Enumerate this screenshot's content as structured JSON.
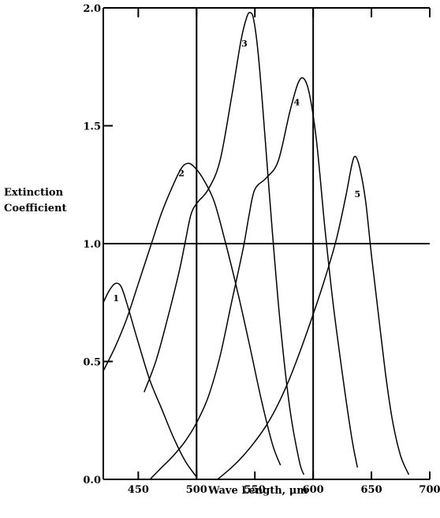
{
  "chart_data": {
    "type": "line",
    "title": "",
    "xlabel": "Wave Length, μm",
    "ylabel": [
      "Extinction",
      "Coefficient"
    ],
    "xlim": [
      420,
      700
    ],
    "ylim": [
      0,
      2.0
    ],
    "x_ticks": [
      450,
      500,
      550,
      600,
      650,
      700
    ],
    "y_ticks": [
      0.0,
      0.5,
      1.0,
      1.5,
      2.0
    ],
    "x_tick_labels": [
      "450",
      "500",
      "550",
      "600",
      "650",
      "700"
    ],
    "y_tick_labels": [
      "0.0",
      "0.5",
      "1.0",
      "1.5",
      "2.0"
    ],
    "reference_lines": {
      "x": [
        500,
        600
      ],
      "y": [
        1.0
      ]
    },
    "grid": false,
    "series": [
      {
        "label": "1",
        "label_at": [
          431,
          0.77
        ],
        "points": [
          [
            420,
            0.75
          ],
          [
            425,
            0.8
          ],
          [
            430,
            0.83
          ],
          [
            435,
            0.82
          ],
          [
            440,
            0.75
          ],
          [
            450,
            0.58
          ],
          [
            460,
            0.42
          ],
          [
            470,
            0.3
          ],
          [
            480,
            0.18
          ],
          [
            490,
            0.08
          ],
          [
            500,
            0.01
          ]
        ]
      },
      {
        "label": "2",
        "label_at": [
          487,
          1.3
        ],
        "points": [
          [
            420,
            0.46
          ],
          [
            430,
            0.56
          ],
          [
            440,
            0.68
          ],
          [
            450,
            0.83
          ],
          [
            460,
            0.98
          ],
          [
            470,
            1.13
          ],
          [
            480,
            1.25
          ],
          [
            487,
            1.32
          ],
          [
            492,
            1.34
          ],
          [
            497,
            1.33
          ],
          [
            505,
            1.28
          ],
          [
            515,
            1.18
          ],
          [
            525,
            1.0
          ],
          [
            535,
            0.8
          ],
          [
            545,
            0.58
          ],
          [
            555,
            0.35
          ],
          [
            565,
            0.15
          ],
          [
            572,
            0.06
          ]
        ]
      },
      {
        "label": "3",
        "label_at": [
          541,
          1.85
        ],
        "points": [
          [
            455,
            0.37
          ],
          [
            465,
            0.5
          ],
          [
            475,
            0.68
          ],
          [
            485,
            0.88
          ],
          [
            490,
            1.0
          ],
          [
            495,
            1.12
          ],
          [
            500,
            1.17
          ],
          [
            510,
            1.23
          ],
          [
            520,
            1.35
          ],
          [
            530,
            1.62
          ],
          [
            538,
            1.86
          ],
          [
            543,
            1.96
          ],
          [
            546,
            1.98
          ],
          [
            549,
            1.95
          ],
          [
            553,
            1.8
          ],
          [
            558,
            1.5
          ],
          [
            565,
            1.05
          ],
          [
            572,
            0.65
          ],
          [
            580,
            0.3
          ],
          [
            588,
            0.08
          ],
          [
            592,
            0.02
          ]
        ]
      },
      {
        "label": "4",
        "label_at": [
          586,
          1.6
        ],
        "points": [
          [
            460,
            0.0
          ],
          [
            470,
            0.05
          ],
          [
            480,
            0.1
          ],
          [
            490,
            0.16
          ],
          [
            500,
            0.24
          ],
          [
            510,
            0.35
          ],
          [
            520,
            0.52
          ],
          [
            530,
            0.75
          ],
          [
            540,
            0.98
          ],
          [
            545,
            1.12
          ],
          [
            550,
            1.23
          ],
          [
            560,
            1.28
          ],
          [
            570,
            1.35
          ],
          [
            580,
            1.56
          ],
          [
            587,
            1.68
          ],
          [
            592,
            1.7
          ],
          [
            597,
            1.63
          ],
          [
            603,
            1.43
          ],
          [
            610,
            1.07
          ],
          [
            617,
            0.75
          ],
          [
            625,
            0.45
          ],
          [
            633,
            0.18
          ],
          [
            638,
            0.05
          ]
        ]
      },
      {
        "label": "5",
        "label_at": [
          638,
          1.21
        ],
        "points": [
          [
            518,
            0.0
          ],
          [
            530,
            0.05
          ],
          [
            540,
            0.1
          ],
          [
            550,
            0.16
          ],
          [
            560,
            0.23
          ],
          [
            570,
            0.32
          ],
          [
            580,
            0.43
          ],
          [
            590,
            0.56
          ],
          [
            600,
            0.7
          ],
          [
            610,
            0.85
          ],
          [
            620,
            1.02
          ],
          [
            628,
            1.2
          ],
          [
            633,
            1.33
          ],
          [
            636,
            1.37
          ],
          [
            640,
            1.32
          ],
          [
            645,
            1.18
          ],
          [
            650,
            0.95
          ],
          [
            656,
            0.7
          ],
          [
            662,
            0.45
          ],
          [
            668,
            0.25
          ],
          [
            675,
            0.1
          ],
          [
            682,
            0.02
          ]
        ]
      }
    ]
  }
}
